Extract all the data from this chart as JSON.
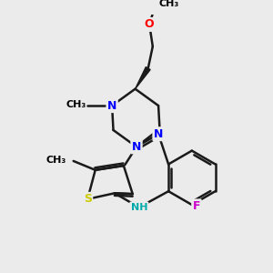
{
  "bg_color": "#ebebeb",
  "atom_colors": {
    "N": "#0000ff",
    "S": "#cccc00",
    "O": "#ff0000",
    "F": "#cc00cc",
    "C": "#000000",
    "H": "#00aaaa"
  },
  "bond_color": "#1a1a1a",
  "line_width": 1.8,
  "font_size": 9,
  "figsize": [
    3.0,
    3.0
  ],
  "dpi": 100,
  "xlim": [
    0,
    10
  ],
  "ylim": [
    0,
    10
  ]
}
